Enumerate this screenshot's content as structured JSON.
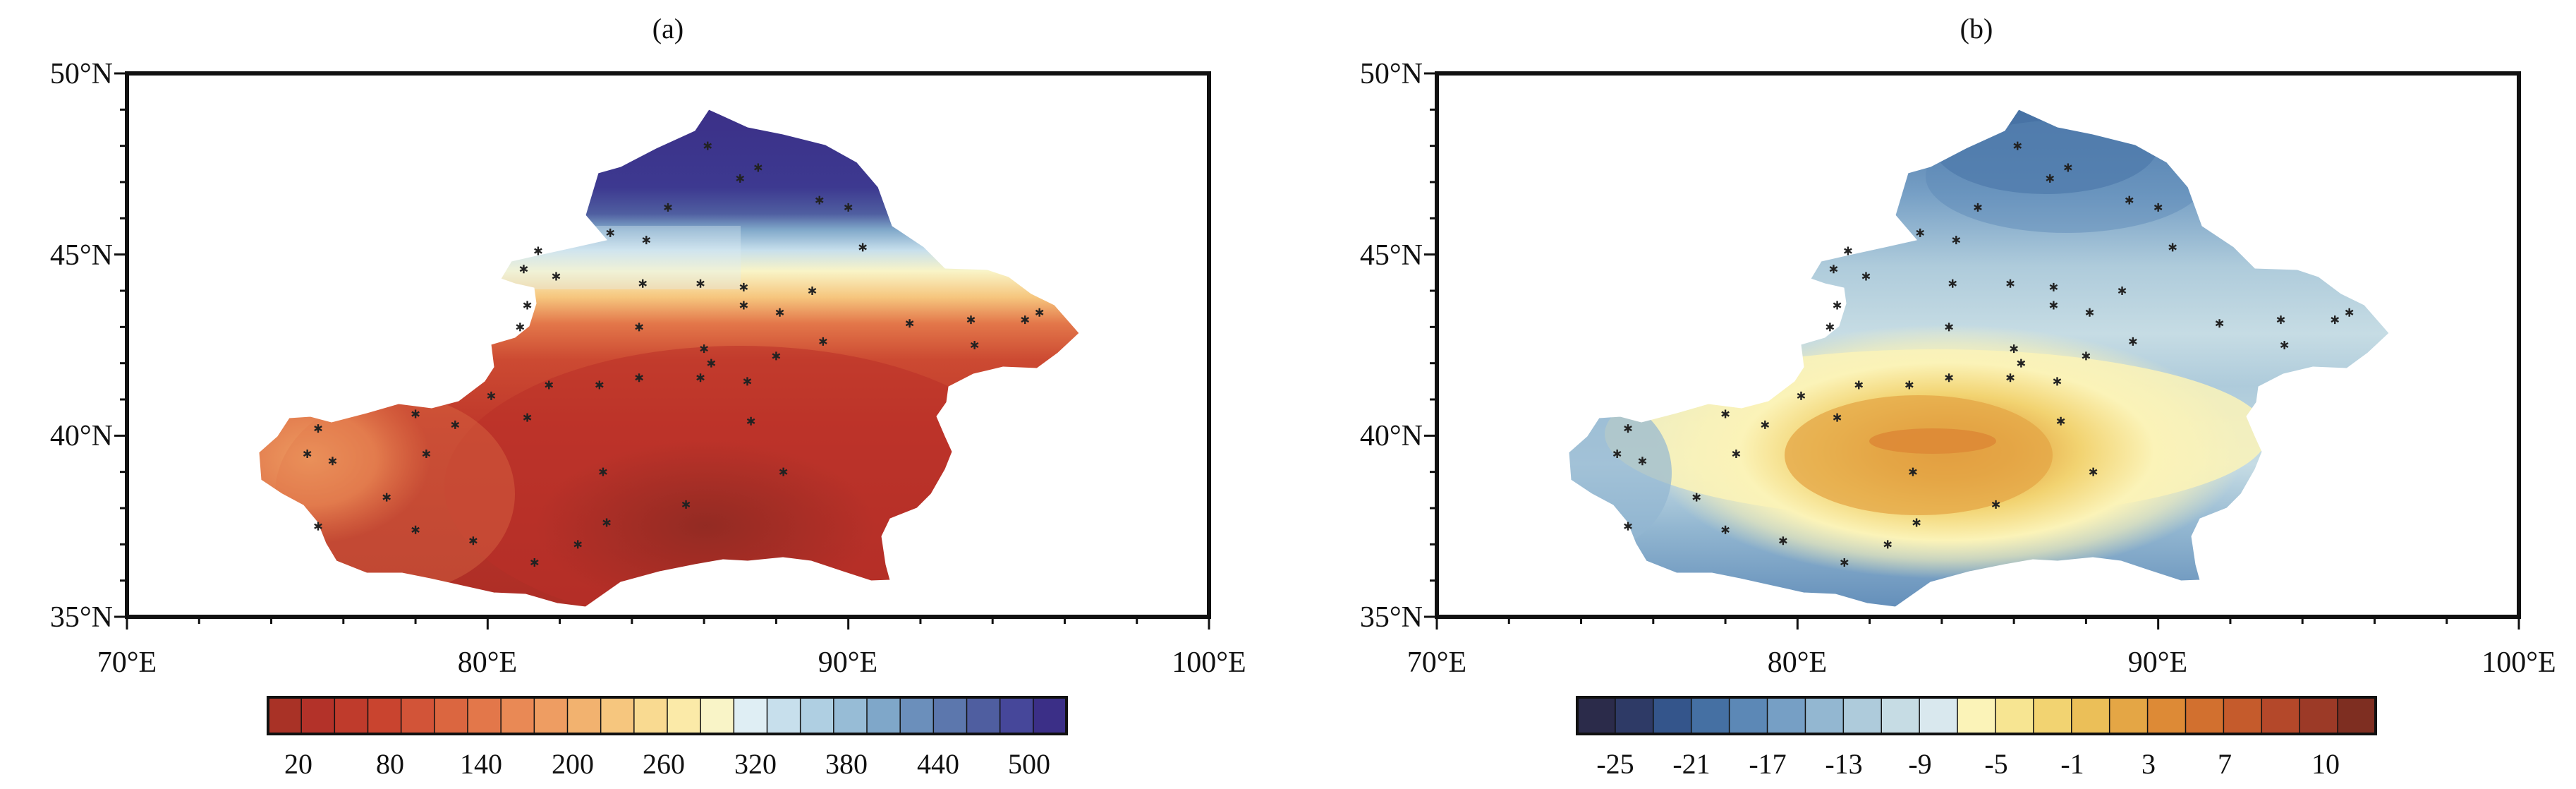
{
  "panels": [
    {
      "id": "a",
      "label": "(a)",
      "x_ticks": [
        "70°E",
        "80°E",
        "90°E",
        "100°E"
      ],
      "y_ticks": [
        "50°N",
        "45°N",
        "40°N",
        "35°N"
      ],
      "colorbar": {
        "labels": [
          "20",
          "80",
          "140",
          "200",
          "260",
          "320",
          "380",
          "440",
          "500"
        ],
        "colors": [
          "#a93226",
          "#b33229",
          "#bf3b2c",
          "#c9442f",
          "#d25438",
          "#db6640",
          "#e3774a",
          "#e98955",
          "#ee9d62",
          "#f2b26f",
          "#f6c67e",
          "#f9da91",
          "#fbeaa8",
          "#f9f4c7",
          "#dfeef4",
          "#c7dfec",
          "#afcfe2",
          "#97bcd6",
          "#7fa7c9",
          "#6b8fbb",
          "#5c77ad",
          "#4f5ea0",
          "#46479a",
          "#3b2f87"
        ],
        "extreme_fill": "#3b2f87"
      },
      "stations_icon": "asterisk-marker"
    },
    {
      "id": "b",
      "label": "(b)",
      "x_ticks": [
        "70°E",
        "80°E",
        "90°E",
        "100°E"
      ],
      "y_ticks": [
        "50°N",
        "45°N",
        "40°N",
        "35°N"
      ],
      "colorbar": {
        "labels": [
          "-25",
          "-21",
          "-17",
          "-13",
          "-9",
          "-5",
          "-1",
          "3",
          "7",
          "10"
        ],
        "colors": [
          "#2b2b4a",
          "#2e3a66",
          "#34558b",
          "#4570a3",
          "#5c88b6",
          "#769fc5",
          "#93b7d1",
          "#aecbdb",
          "#c6dce4",
          "#d9e8ee",
          "#fbf3b8",
          "#f7e592",
          "#f2d371",
          "#ebbf58",
          "#e4a645",
          "#dd8a36",
          "#d2702f",
          "#c55b2c",
          "#b4482a",
          "#9c3a27",
          "#7e2e21"
        ],
        "extreme_fill": "#7e2e21"
      },
      "stations_icon": "asterisk-marker"
    }
  ],
  "stations": [
    [
      86.1,
      48.0
    ],
    [
      87.5,
      47.4
    ],
    [
      87.0,
      47.1
    ],
    [
      89.2,
      46.5
    ],
    [
      90.0,
      46.3
    ],
    [
      85.0,
      46.3
    ],
    [
      83.4,
      45.6
    ],
    [
      84.4,
      45.4
    ],
    [
      90.4,
      45.2
    ],
    [
      81.4,
      45.1
    ],
    [
      81.0,
      44.6
    ],
    [
      85.9,
      44.2
    ],
    [
      81.9,
      44.4
    ],
    [
      84.3,
      44.2
    ],
    [
      87.1,
      44.1
    ],
    [
      89.0,
      44.0
    ],
    [
      87.1,
      43.6
    ],
    [
      81.1,
      43.6
    ],
    [
      88.1,
      43.4
    ],
    [
      91.7,
      43.1
    ],
    [
      84.2,
      43.0
    ],
    [
      80.9,
      43.0
    ],
    [
      93.4,
      43.2
    ],
    [
      94.9,
      43.2
    ],
    [
      86.0,
      42.4
    ],
    [
      88.0,
      42.2
    ],
    [
      89.3,
      42.6
    ],
    [
      86.2,
      42.0
    ],
    [
      93.5,
      42.5
    ],
    [
      95.3,
      43.4
    ],
    [
      81.7,
      41.4
    ],
    [
      83.1,
      41.4
    ],
    [
      84.2,
      41.6
    ],
    [
      85.9,
      41.6
    ],
    [
      87.2,
      41.5
    ],
    [
      80.1,
      41.1
    ],
    [
      78.0,
      40.6
    ],
    [
      79.1,
      40.3
    ],
    [
      81.1,
      40.5
    ],
    [
      87.3,
      40.4
    ],
    [
      75.3,
      40.2
    ],
    [
      75.0,
      39.5
    ],
    [
      75.7,
      39.3
    ],
    [
      78.3,
      39.5
    ],
    [
      83.2,
      39.0
    ],
    [
      88.2,
      39.0
    ],
    [
      77.2,
      38.3
    ],
    [
      85.5,
      38.1
    ],
    [
      83.3,
      37.6
    ],
    [
      78.0,
      37.4
    ],
    [
      75.3,
      37.5
    ],
    [
      79.6,
      37.1
    ],
    [
      82.5,
      37.0
    ],
    [
      81.3,
      36.5
    ]
  ]
}
